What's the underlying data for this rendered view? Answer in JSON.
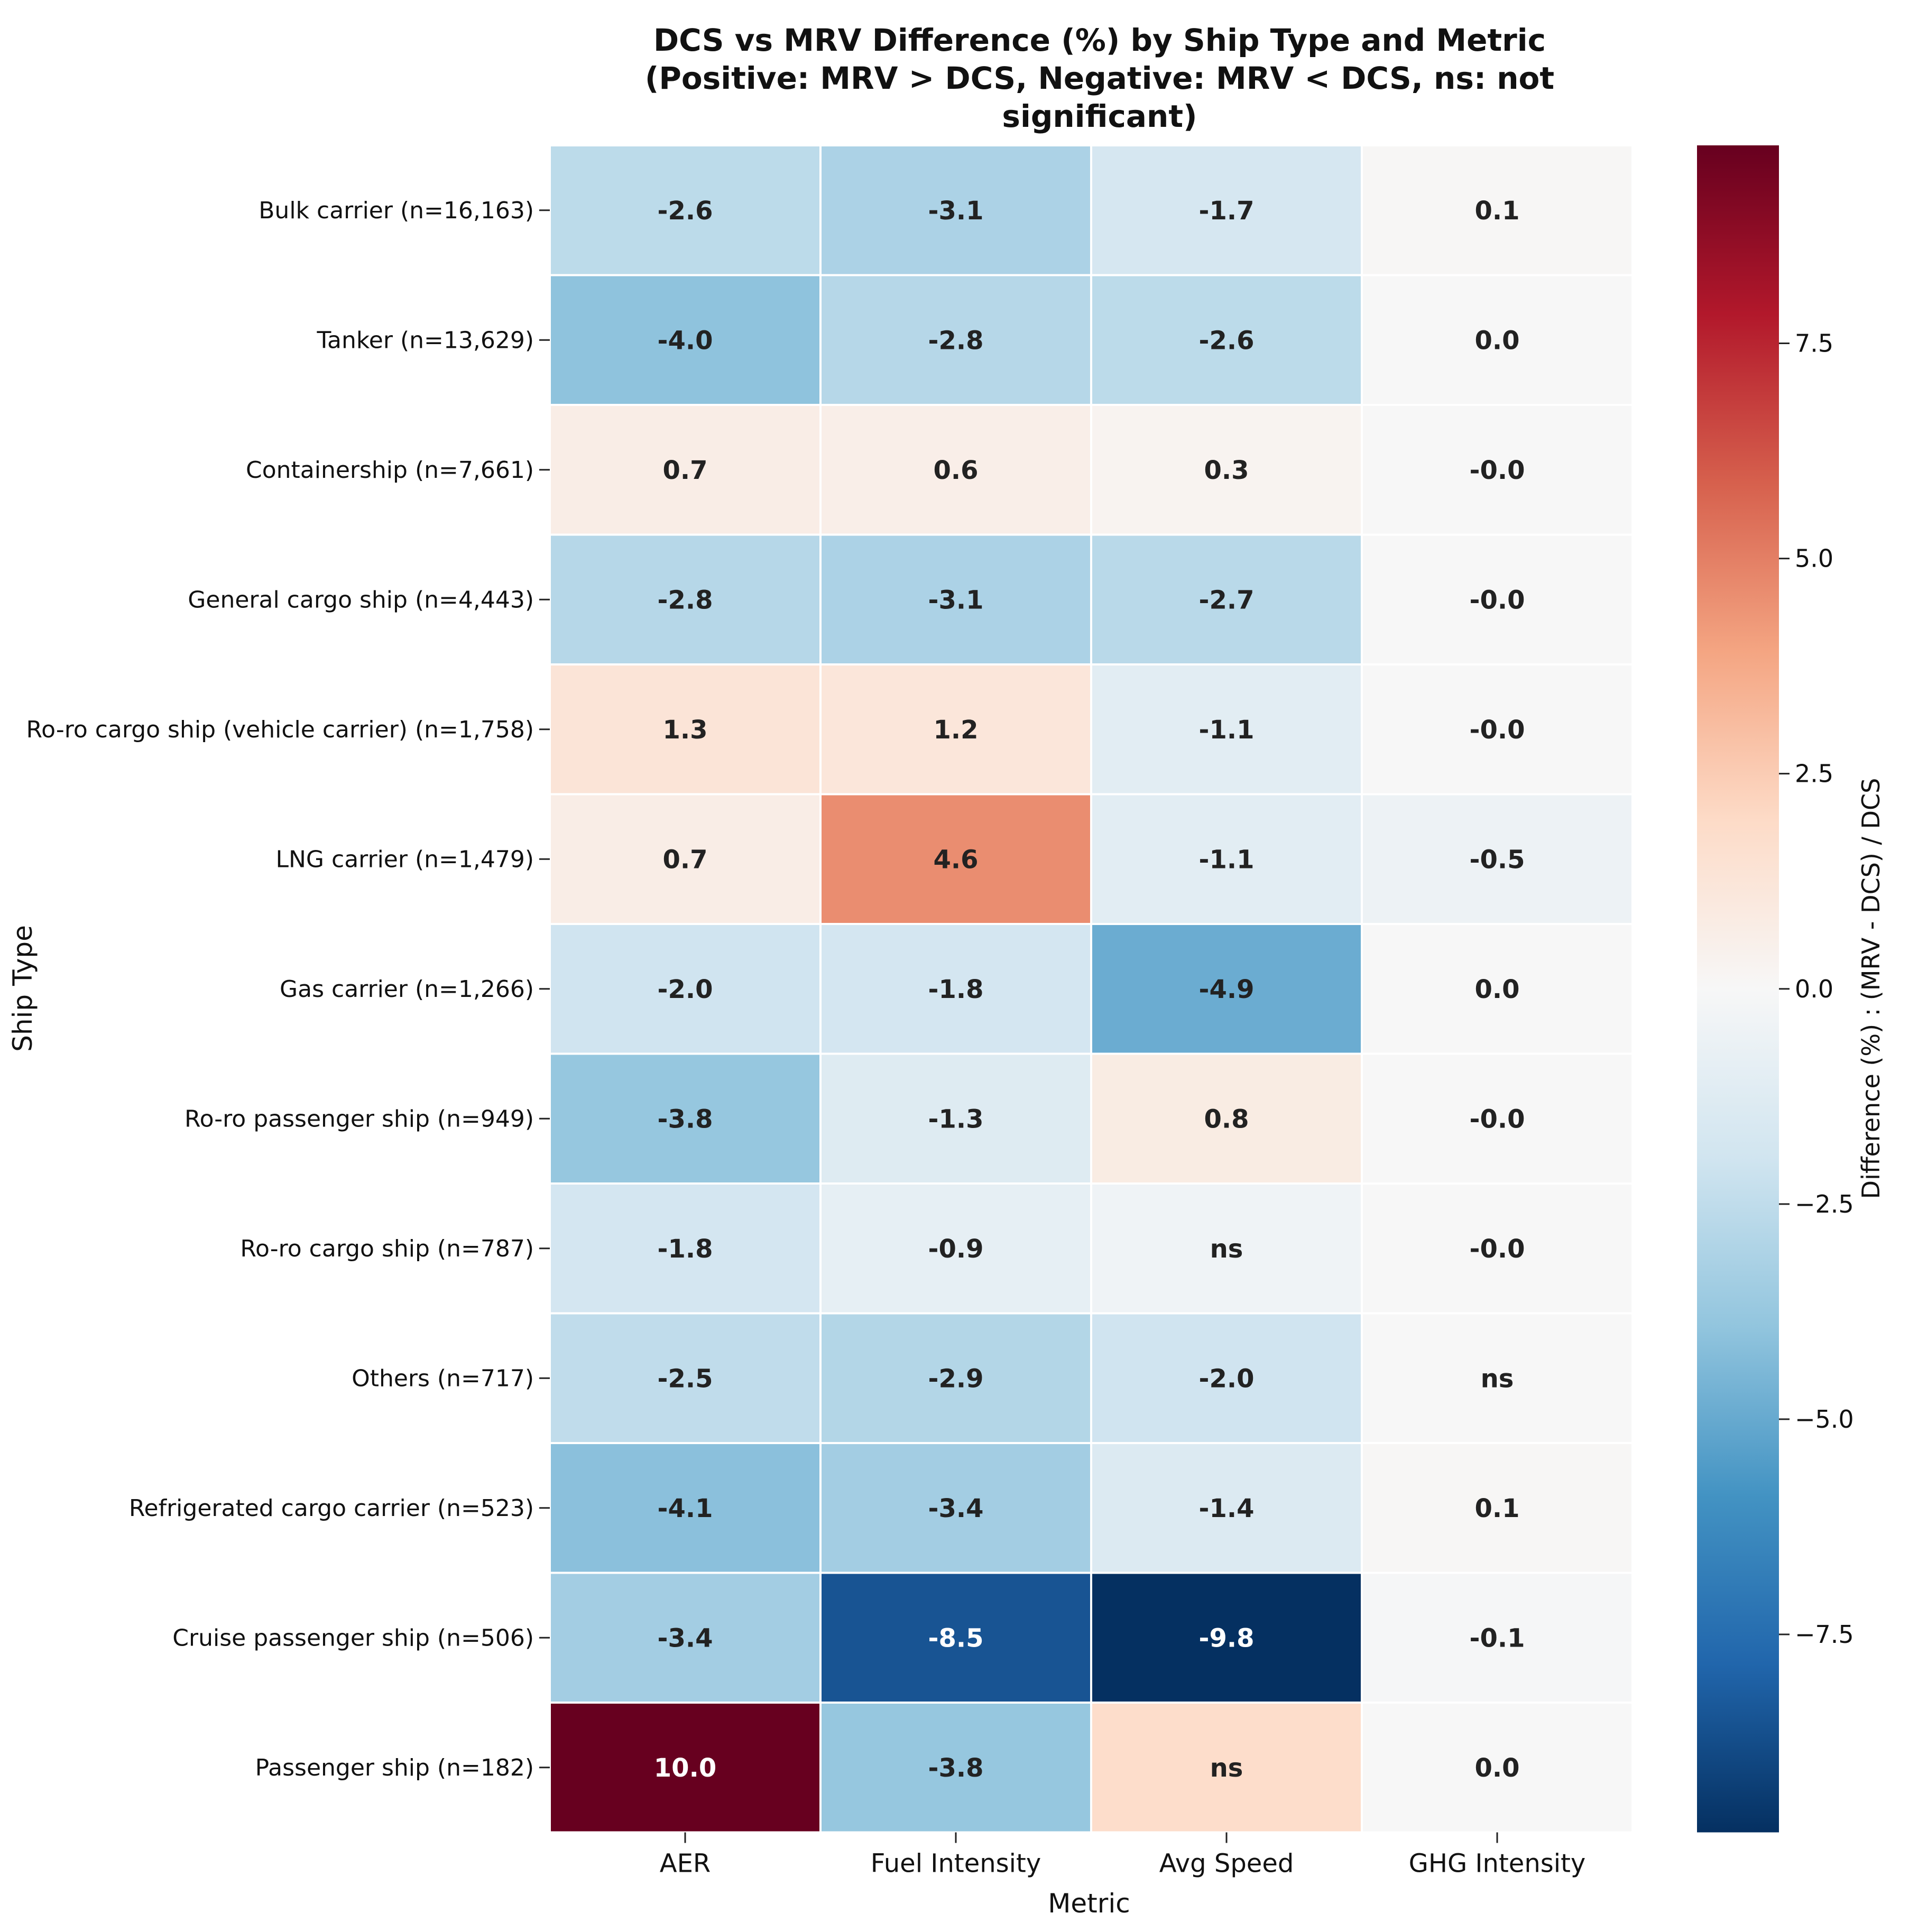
{
  "chart_data": {
    "type": "heatmap",
    "title": "DCS vs MRV Difference (%) by Ship Type and Metric",
    "subtitle": "(Positive: MRV > DCS, Negative: MRV < DCS, ns: not significant)",
    "xlabel": "Metric",
    "ylabel": "Ship Type",
    "columns": [
      "AER",
      "Fuel Intensity",
      "Avg Speed",
      "GHG Intensity"
    ],
    "rows": [
      "Bulk carrier (n=16,163)",
      "Tanker (n=13,629)",
      "Containership (n=7,661)",
      "General cargo ship (n=4,443)",
      "Ro-ro cargo ship (vehicle carrier) (n=1,758)",
      "LNG carrier (n=1,479)",
      "Gas carrier (n=1,266)",
      "Ro-ro passenger ship (n=949)",
      "Ro-ro cargo ship (n=787)",
      "Others (n=717)",
      "Refrigerated cargo carrier (n=523)",
      "Cruise passenger ship (n=506)",
      "Passenger ship (n=182)"
    ],
    "values": [
      [
        -2.6,
        -3.1,
        -1.7,
        0.1
      ],
      [
        -4.0,
        -2.8,
        -2.6,
        0.0
      ],
      [
        0.7,
        0.6,
        0.3,
        -0.0
      ],
      [
        -2.8,
        -3.1,
        -2.7,
        -0.0
      ],
      [
        1.3,
        1.2,
        -1.1,
        -0.0
      ],
      [
        0.7,
        4.6,
        -1.1,
        -0.5
      ],
      [
        -2.0,
        -1.8,
        -4.9,
        0.0
      ],
      [
        -3.8,
        -1.3,
        0.8,
        -0.0
      ],
      [
        -1.8,
        -0.9,
        null,
        -0.0
      ],
      [
        -2.5,
        -2.9,
        -2.0,
        null
      ],
      [
        -4.1,
        -3.4,
        -1.4,
        0.1
      ],
      [
        -3.4,
        -8.5,
        -9.8,
        -0.1
      ],
      [
        10.0,
        -3.8,
        null,
        0.0
      ]
    ],
    "labels": [
      [
        "-2.6",
        "-3.1",
        "-1.7",
        "0.1"
      ],
      [
        "-4.0",
        "-2.8",
        "-2.6",
        "0.0"
      ],
      [
        "0.7",
        "0.6",
        "0.3",
        "-0.0"
      ],
      [
        "-2.8",
        "-3.1",
        "-2.7",
        "-0.0"
      ],
      [
        "1.3",
        "1.2",
        "-1.1",
        "-0.0"
      ],
      [
        "0.7",
        "4.6",
        "-1.1",
        "-0.5"
      ],
      [
        "-2.0",
        "-1.8",
        "-4.9",
        "0.0"
      ],
      [
        "-3.8",
        "-1.3",
        "0.8",
        "-0.0"
      ],
      [
        "-1.8",
        "-0.9",
        "ns",
        "-0.0"
      ],
      [
        "-2.5",
        "-2.9",
        "-2.0",
        "ns"
      ],
      [
        "-4.1",
        "-3.4",
        "-1.4",
        "0.1"
      ],
      [
        "-3.4",
        "-8.5",
        "-9.8",
        "-0.1"
      ],
      [
        "10.0",
        "-3.8",
        "ns",
        "0.0"
      ]
    ],
    "ns_fill": [
      [
        null,
        null,
        null,
        null
      ],
      [
        null,
        null,
        null,
        null
      ],
      [
        null,
        null,
        null,
        null
      ],
      [
        null,
        null,
        null,
        null
      ],
      [
        null,
        null,
        null,
        null
      ],
      [
        null,
        null,
        null,
        null
      ],
      [
        null,
        null,
        null,
        null
      ],
      [
        null,
        null,
        null,
        null
      ],
      [
        null,
        null,
        -0.4,
        null
      ],
      [
        null,
        null,
        null,
        0.0
      ],
      [
        null,
        null,
        null,
        null
      ],
      [
        null,
        null,
        null,
        null
      ],
      [
        null,
        null,
        1.8,
        null
      ]
    ],
    "colorbar": {
      "label": "Difference (%) : (MRV - DCS) / DCS",
      "vmin": -9.8,
      "vmax": 9.8,
      "ticks": [
        7.5,
        5.0,
        2.5,
        0.0,
        -2.5,
        -5.0,
        -7.5
      ],
      "tick_labels": [
        "7.5",
        "5.0",
        "2.5",
        "0.0",
        "−2.5",
        "−5.0",
        "−7.5"
      ]
    },
    "colormap": [
      "#053061",
      "#2166ac",
      "#4393c3",
      "#92c5de",
      "#d1e5f0",
      "#f7f7f7",
      "#fddbc7",
      "#f4a582",
      "#d6604d",
      "#b2182b",
      "#67001f"
    ]
  }
}
